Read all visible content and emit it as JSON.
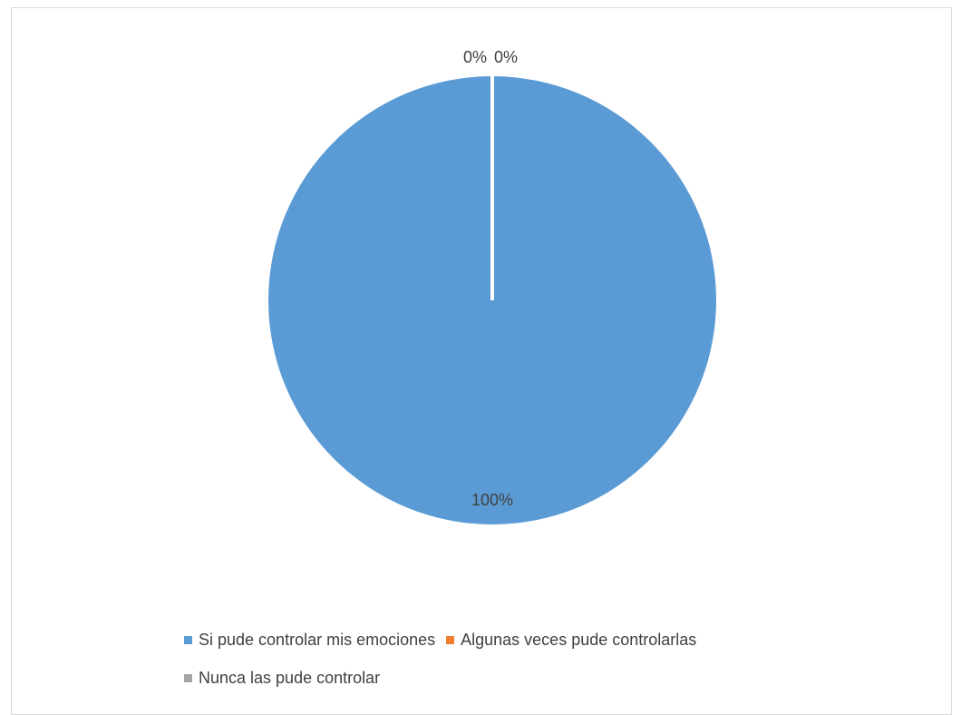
{
  "chart_data": {
    "type": "pie",
    "categories": [
      "Si pude controlar mis emociones",
      "Algunas veces pude controlarlas",
      "Nunca las pude controlar"
    ],
    "values": [
      100,
      0,
      0
    ],
    "data_labels": [
      "100%",
      "0%",
      "0%"
    ],
    "colors": [
      "#5b9bd5",
      "#ed7d31",
      "#a5a5a5"
    ],
    "legend_placement": "bottom",
    "title": ""
  }
}
